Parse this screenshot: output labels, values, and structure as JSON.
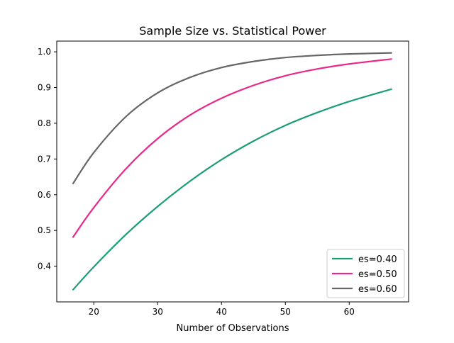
{
  "chart_data": {
    "type": "line",
    "title": "Sample Size vs. Statistical Power",
    "xlabel": "Number of Observations",
    "ylabel": "",
    "xlim": [
      14.2,
      69.3
    ],
    "ylim": [
      0.3,
      1.03
    ],
    "x_ticks": [
      20,
      30,
      40,
      50,
      60
    ],
    "y_ticks": [
      0.4,
      0.5,
      0.6,
      0.7,
      0.8,
      0.9,
      1.0
    ],
    "x_tick_labels": [
      "20",
      "30",
      "40",
      "50",
      "60"
    ],
    "y_tick_labels": [
      "0.4",
      "0.5",
      "0.6",
      "0.7",
      "0.8",
      "0.9",
      "1.0"
    ],
    "legend_position": "lower-right",
    "grid": false,
    "x": [
      16.7,
      20,
      25,
      30,
      35,
      40,
      45,
      50,
      55,
      60,
      66.7
    ],
    "series": [
      {
        "name": "es=0.40",
        "color": "#1b9e77",
        "values": [
          0.333,
          0.398,
          0.488,
          0.567,
          0.637,
          0.698,
          0.75,
          0.794,
          0.83,
          0.861,
          0.896
        ]
      },
      {
        "name": "es=0.50",
        "color": "#e7298a",
        "values": [
          0.48,
          0.564,
          0.672,
          0.757,
          0.822,
          0.87,
          0.906,
          0.933,
          0.952,
          0.966,
          0.98
        ]
      },
      {
        "name": "es=0.60",
        "color": "#666666",
        "values": [
          0.63,
          0.718,
          0.818,
          0.885,
          0.928,
          0.956,
          0.973,
          0.984,
          0.99,
          0.994,
          0.997
        ]
      }
    ]
  }
}
